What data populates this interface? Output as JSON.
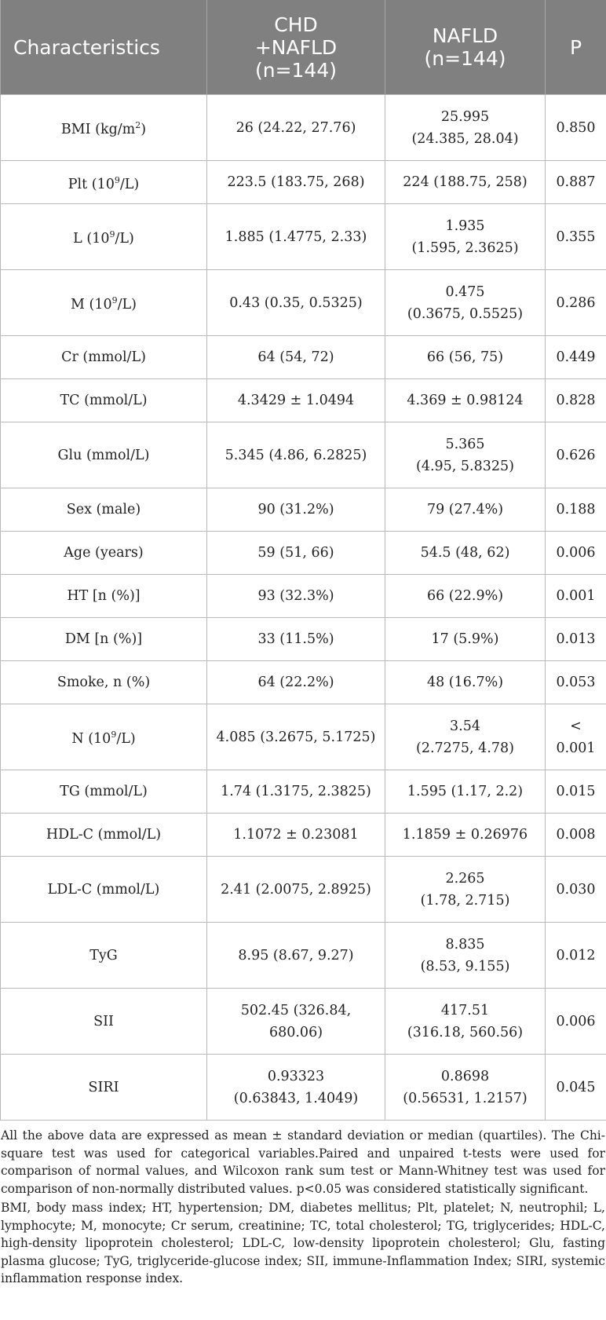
{
  "table": {
    "headers": [
      {
        "lines": [
          "Characteristics"
        ]
      },
      {
        "lines": [
          "CHD",
          "+NAFLD",
          "(n=144)"
        ]
      },
      {
        "lines": [
          "NAFLD",
          "(n=144)"
        ]
      },
      {
        "lines": [
          "P"
        ]
      }
    ],
    "rows": [
      {
        "label": "BMI (kg/m",
        "sup": "2",
        "label_tail": ")",
        "chd": [
          "26 (24.22, 27.76)"
        ],
        "nafld": [
          "25.995",
          "(24.385, 28.04)"
        ],
        "p": [
          "0.850"
        ]
      },
      {
        "label": "Plt (10",
        "sup": "9",
        "label_tail": "/L)",
        "chd": [
          "223.5 (183.75, 268)"
        ],
        "nafld": [
          "224 (188.75, 258)"
        ],
        "p": [
          "0.887"
        ]
      },
      {
        "label": "L (10",
        "sup": "9",
        "label_tail": "/L)",
        "chd": [
          "1.885 (1.4775, 2.33)"
        ],
        "nafld": [
          "1.935",
          "(1.595, 2.3625)"
        ],
        "p": [
          "0.355"
        ]
      },
      {
        "label": "M (10",
        "sup": "9",
        "label_tail": "/L)",
        "chd": [
          "0.43 (0.35, 0.5325)"
        ],
        "nafld": [
          "0.475",
          "(0.3675, 0.5525)"
        ],
        "p": [
          "0.286"
        ]
      },
      {
        "label": "Cr (mmol/L)",
        "chd": [
          "64 (54, 72)"
        ],
        "nafld": [
          "66 (56, 75)"
        ],
        "p": [
          "0.449"
        ]
      },
      {
        "label": "TC (mmol/L)",
        "chd": [
          "4.3429 ± 1.0494"
        ],
        "nafld": [
          "4.369 ± 0.98124"
        ],
        "p": [
          "0.828"
        ]
      },
      {
        "label": "Glu (mmol/L)",
        "chd": [
          "5.345 (4.86, 6.2825)"
        ],
        "nafld": [
          "5.365",
          "(4.95, 5.8325)"
        ],
        "p": [
          "0.626"
        ]
      },
      {
        "label": "Sex (male)",
        "chd": [
          "90 (31.2%)"
        ],
        "nafld": [
          "79 (27.4%)"
        ],
        "p": [
          "0.188"
        ]
      },
      {
        "label": "Age (years)",
        "chd": [
          "59 (51, 66)"
        ],
        "nafld": [
          "54.5 (48, 62)"
        ],
        "p": [
          "0.006"
        ]
      },
      {
        "label": "HT [n (%)]",
        "chd": [
          "93 (32.3%)"
        ],
        "nafld": [
          "66 (22.9%)"
        ],
        "p": [
          "0.001"
        ]
      },
      {
        "label": "DM [n (%)]",
        "chd": [
          "33 (11.5%)"
        ],
        "nafld": [
          "17 (5.9%)"
        ],
        "p": [
          "0.013"
        ]
      },
      {
        "label": "Smoke, n (%)",
        "chd": [
          "64 (22.2%)"
        ],
        "nafld": [
          "48 (16.7%)"
        ],
        "p": [
          "0.053"
        ]
      },
      {
        "label": "N (10",
        "sup": "9",
        "label_tail": "/L)",
        "chd": [
          "4.085 (3.2675, 5.1725)"
        ],
        "nafld": [
          "3.54",
          "(2.7275, 4.78)"
        ],
        "p": [
          "<",
          "0.001"
        ]
      },
      {
        "label": "TG (mmol/L)",
        "chd": [
          "1.74 (1.3175, 2.3825)"
        ],
        "nafld": [
          "1.595 (1.17, 2.2)"
        ],
        "p": [
          "0.015"
        ]
      },
      {
        "label": "HDL-C (mmol/L)",
        "chd": [
          "1.1072 ± 0.23081"
        ],
        "nafld": [
          "1.1859 ± 0.26976"
        ],
        "p": [
          "0.008"
        ]
      },
      {
        "label": "LDL-C (mmol/L)",
        "chd": [
          "2.41 (2.0075, 2.8925)"
        ],
        "nafld": [
          "2.265",
          "(1.78, 2.715)"
        ],
        "p": [
          "0.030"
        ]
      },
      {
        "label": "TyG",
        "chd": [
          "8.95 (8.67, 9.27)"
        ],
        "nafld": [
          "8.835",
          "(8.53, 9.155)"
        ],
        "p": [
          "0.012"
        ]
      },
      {
        "label": "SII",
        "chd": [
          "502.45 (326.84, 680.06)"
        ],
        "nafld": [
          "417.51",
          "(316.18, 560.56)"
        ],
        "p": [
          "0.006"
        ]
      },
      {
        "label": "SIRI",
        "chd": [
          "0.93323",
          "(0.63843, 1.4049)"
        ],
        "nafld": [
          "0.8698",
          "(0.56531, 1.2157)"
        ],
        "p": [
          "0.045"
        ]
      }
    ]
  },
  "footnotes": {
    "methods": "All the above data are expressed as mean ± standard deviation or median (quartiles). The Chi-square test was used for categorical variables.Paired and unpaired t-tests were used for comparison of normal values, and Wilcoxon rank sum test or Mann-Whitney test was used for comparison of non-normally distributed values. p<0.05 was considered statistically significant.",
    "abbreviations": "BMI, body mass index; HT, hypertension; DM, diabetes mellitus; Plt, platelet; N, neutrophil; L, lymphocyte; M, monocyte; Cr serum, creatinine; TC, total cholesterol; TG, triglycerides; HDL-C, high-density lipoprotein cholesterol; LDL-C, low-density lipoprotein cholesterol; Glu, fasting plasma glucose; TyG, triglyceride-glucose index; SII, immune-Inflammation Index; SIRI, systemic inflammation response index."
  }
}
